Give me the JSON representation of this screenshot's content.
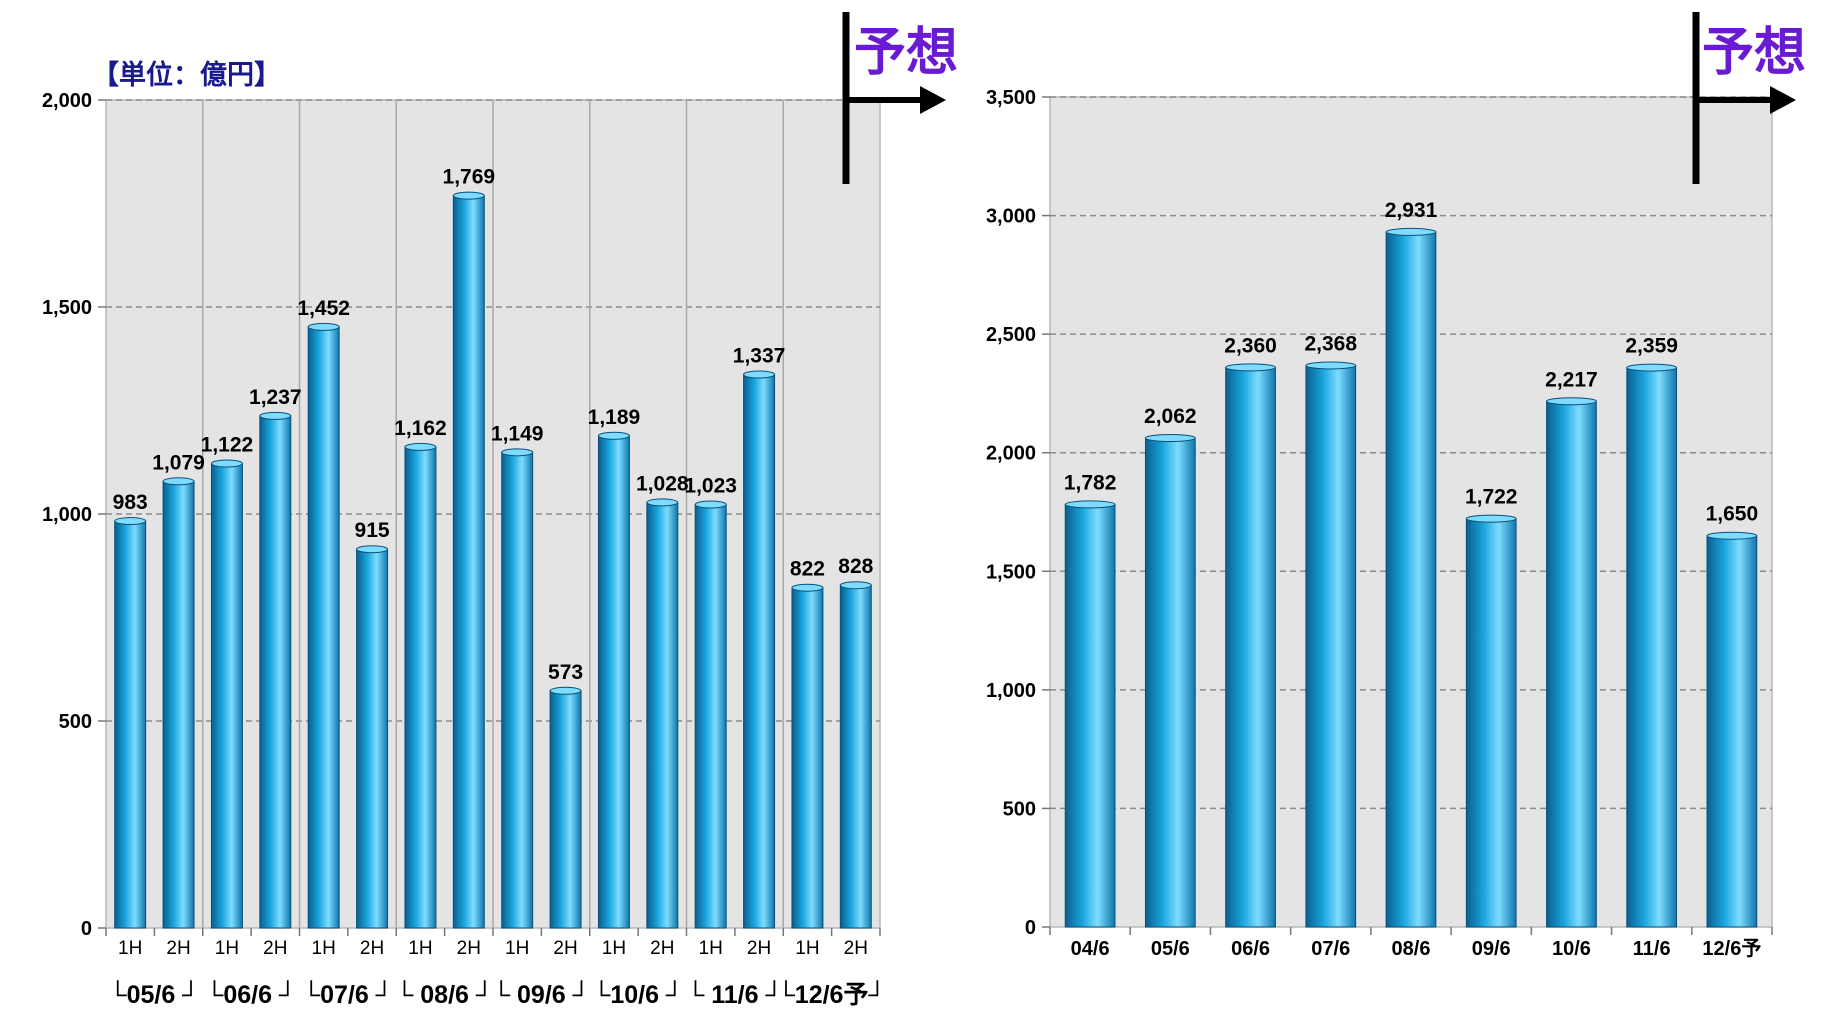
{
  "unit_label": "【単位：億円】",
  "forecast_label": "予想",
  "colors": {
    "bar_top": "#7fdcff",
    "bar_mid": "#1aa6df",
    "bar_dark": "#0a5f8f",
    "plot_bg": "#e4e4e4",
    "forecast": "#6a1bd1"
  },
  "chart_data": [
    {
      "type": "bar",
      "title": "",
      "ylim": [
        0,
        2000
      ],
      "yticks": [
        "0",
        "500",
        "1,000",
        "1,500",
        "2,000"
      ],
      "ytick_values": [
        0,
        500,
        1000,
        1500,
        2000
      ],
      "categories": [
        "1H",
        "2H",
        "1H",
        "2H",
        "1H",
        "2H",
        "1H",
        "2H",
        "1H",
        "2H",
        "1H",
        "2H",
        "1H",
        "2H",
        "1H",
        "2H"
      ],
      "groups": [
        "05/6",
        "06/6",
        "07/6",
        "08/6",
        "09/6",
        "10/6",
        "11/6",
        "12/6予"
      ],
      "group_texts": [
        "└05/6 ┘",
        "└06/6 ┘",
        "└07/6 ┘",
        "└ 08/6 ┘",
        "└ 09/6 ┘",
        "└10/6 ┘",
        "└ 11/6 ┘",
        "└12/6予┘"
      ],
      "values": [
        983,
        1079,
        1122,
        1237,
        1452,
        915,
        1162,
        1769,
        1149,
        573,
        1189,
        1028,
        1023,
        1337,
        822,
        828
      ],
      "value_labels": [
        "983",
        "1,079",
        "1,122",
        "1,237",
        "1,452",
        "915",
        "1,162",
        "1,769",
        "1,149",
        "573",
        "1,189",
        "1,028",
        "1,023",
        "1,337",
        "822",
        "828"
      ],
      "grid": true
    },
    {
      "type": "bar",
      "title": "",
      "ylim": [
        0,
        3500
      ],
      "yticks": [
        "0",
        "500",
        "1,000",
        "1,500",
        "2,000",
        "2,500",
        "3,000",
        "3,500"
      ],
      "ytick_values": [
        0,
        500,
        1000,
        1500,
        2000,
        2500,
        3000,
        3500
      ],
      "categories": [
        "04/6",
        "05/6",
        "06/6",
        "07/6",
        "08/6",
        "09/6",
        "10/6",
        "11/6",
        "12/6予"
      ],
      "values": [
        1782,
        2062,
        2360,
        2368,
        2931,
        1722,
        2217,
        2359,
        1650
      ],
      "value_labels": [
        "1,782",
        "2,062",
        "2,360",
        "2,368",
        "2,931",
        "1,722",
        "2,217",
        "2,359",
        "1,650"
      ],
      "grid": true
    }
  ]
}
